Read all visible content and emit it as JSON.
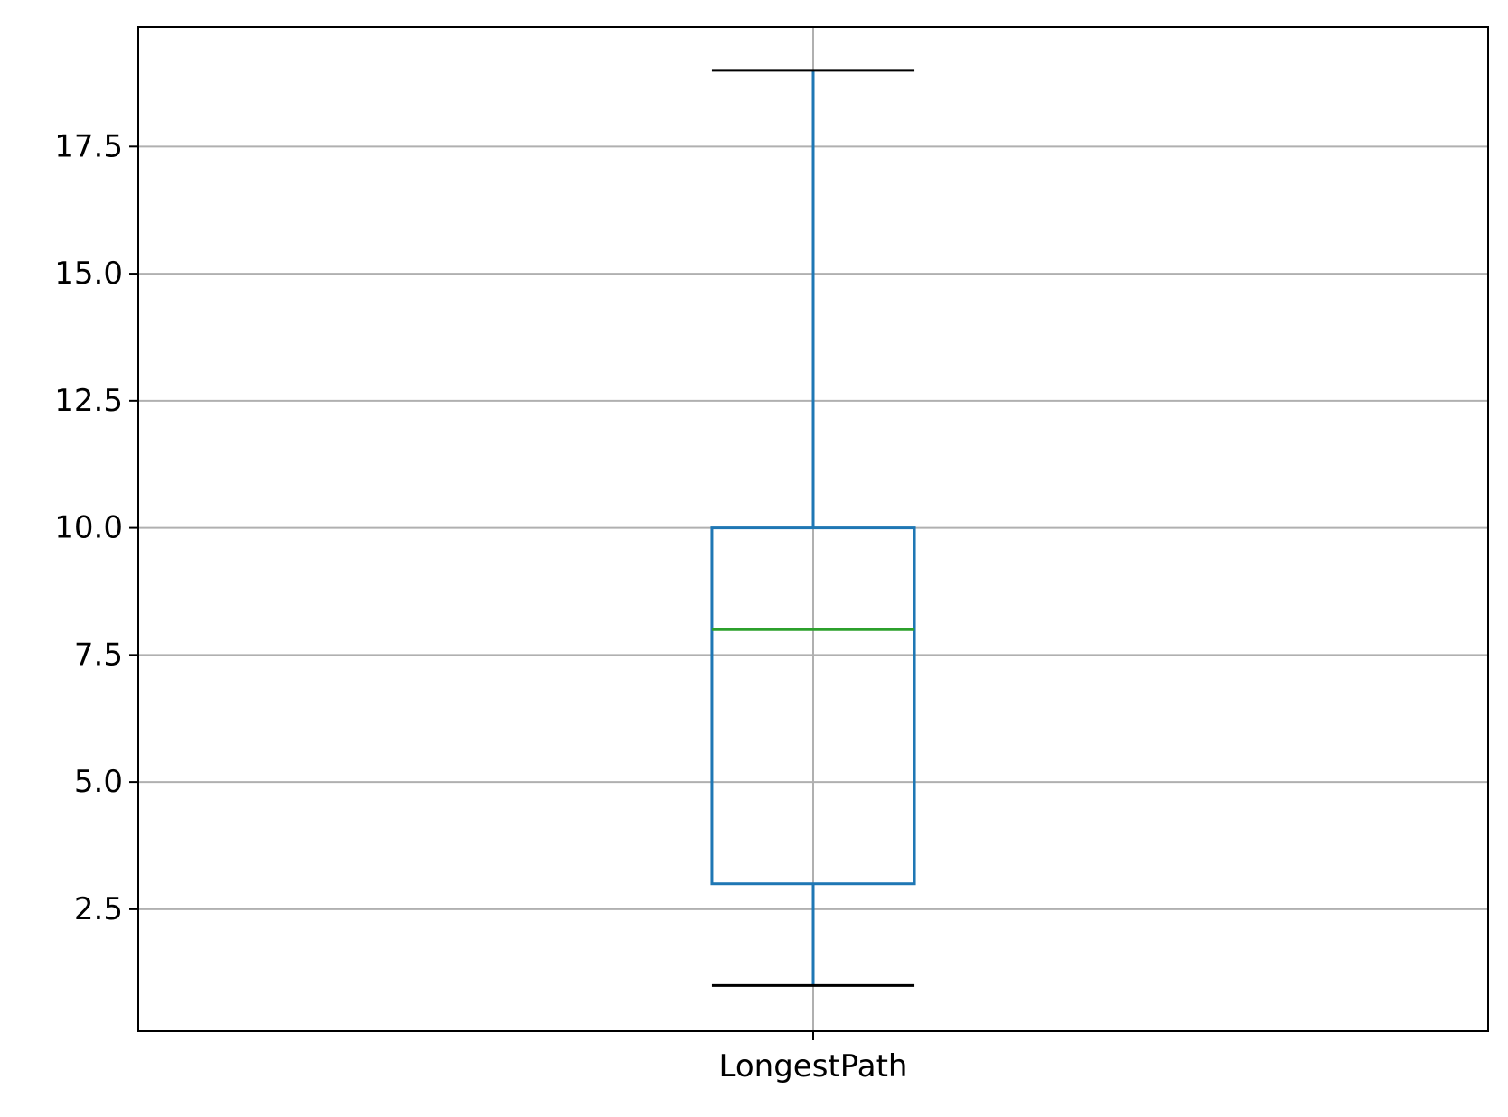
{
  "chart_data": {
    "type": "box",
    "categories": [
      "LongestPath"
    ],
    "boxes": [
      {
        "category": "LongestPath",
        "whisker_low": 1,
        "q1": 3,
        "median": 8,
        "q3": 10,
        "whisker_high": 19
      }
    ],
    "ylim": [
      0.1,
      19.85
    ],
    "yticks": [
      2.5,
      5.0,
      7.5,
      10.0,
      12.5,
      15.0,
      17.5
    ],
    "ytick_labels": [
      "2.5",
      "5.0",
      "7.5",
      "10.0",
      "12.5",
      "15.0",
      "17.5"
    ],
    "grid": true,
    "colors": {
      "box": "#1f77b4",
      "median": "#2ca02c",
      "whisker_cap": "#000000",
      "grid": "#b0b0b0",
      "axes": "#000000"
    }
  }
}
